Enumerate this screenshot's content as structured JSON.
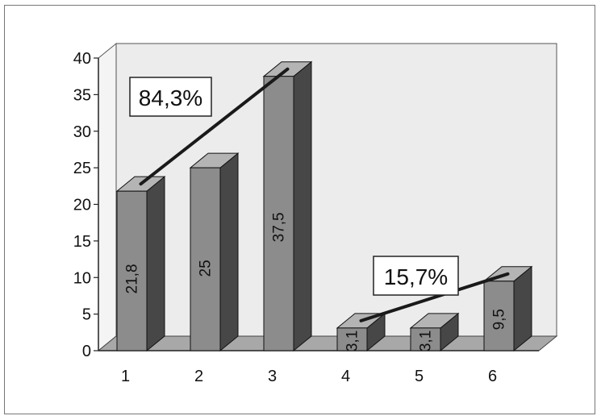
{
  "chart_data": {
    "type": "bar",
    "style": "3d-column",
    "title": "",
    "xlabel": "",
    "ylabel": "",
    "categories": [
      "1",
      "2",
      "3",
      "4",
      "5",
      "6"
    ],
    "values": [
      21.8,
      25,
      37.5,
      3.1,
      3.1,
      9.5
    ],
    "value_labels": [
      "21,8",
      "25",
      "37,5",
      "3,1",
      "3,1",
      "9,5"
    ],
    "ylim": [
      0,
      40
    ],
    "yticks": [
      "0",
      "5",
      "10",
      "15",
      "20",
      "25",
      "30",
      "35",
      "40"
    ],
    "grid": false,
    "legend": "none",
    "annotations": [
      {
        "text": "84,3%",
        "from_category": "1",
        "to_category": "3"
      },
      {
        "text": "15,7%",
        "from_category": "4",
        "to_category": "6"
      }
    ],
    "colors": {
      "bar_front": "#8c8c8c",
      "bar_top": "#b4b4b4",
      "bar_side": "#474747",
      "back_wall": "#ececec",
      "floor": "#a8a8a8",
      "trend_line": "#1a1a1a"
    }
  }
}
